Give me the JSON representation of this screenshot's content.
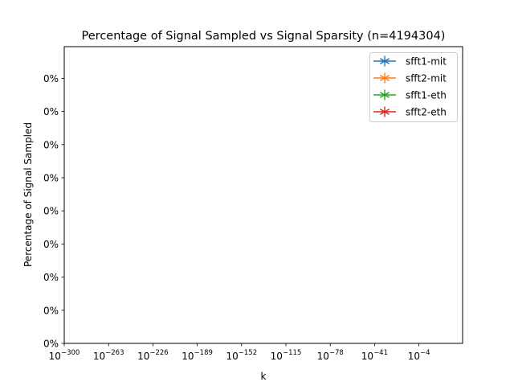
{
  "chart_data": {
    "type": "line",
    "title": "Percentage of Signal Sampled vs Signal Sparsity (n=4194304)",
    "xlabel": "k",
    "ylabel": "Percentage of Signal Sampled",
    "x_scale": "log",
    "x_tick_base": "10",
    "x_tick_exponents": [
      "−300",
      "−263",
      "−226",
      "−189",
      "−152",
      "−115",
      "−78",
      "−41",
      "−4"
    ],
    "y_tick_labels": [
      "0%",
      "0%",
      "0%",
      "0%",
      "0%",
      "0%",
      "0%",
      "0%",
      "0%"
    ],
    "grid": false,
    "legend_position": "top-right",
    "series": [
      {
        "name": "sfft1-mit",
        "color": "#1f77b4",
        "marker": "star",
        "x": [],
        "y": []
      },
      {
        "name": "sfft2-mit",
        "color": "#ff7f0e",
        "marker": "star",
        "x": [],
        "y": []
      },
      {
        "name": "sfft1-eth",
        "color": "#2ca02c",
        "marker": "star",
        "x": [],
        "y": []
      },
      {
        "name": "sfft2-eth",
        "color": "#d62728",
        "marker": "star",
        "x": [],
        "y": []
      }
    ]
  }
}
